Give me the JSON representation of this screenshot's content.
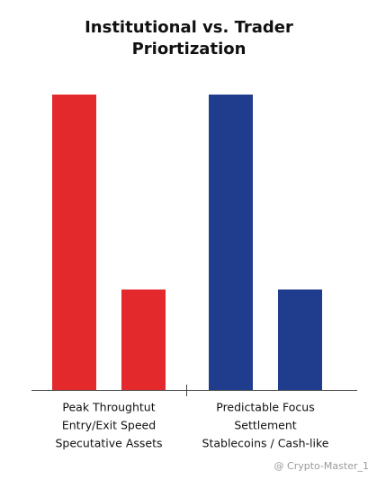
{
  "chart_data": {
    "type": "bar",
    "title": [
      "Institutional vs. Trader",
      "Priortization"
    ],
    "groups": [
      {
        "label": [
          "Peak Throughtut",
          "Entry/Exit Speed",
          "Specutative Assets"
        ],
        "color": "#e3292c",
        "values": [
          100,
          34
        ]
      },
      {
        "label": [
          "Predictable Focus",
          "Settlement",
          "Stablecoins / Cash-like"
        ],
        "color": "#1f3d8c",
        "values": [
          100,
          34
        ]
      }
    ],
    "ylim": [
      0,
      100
    ],
    "watermark": "@ Crypto-Master_1"
  }
}
